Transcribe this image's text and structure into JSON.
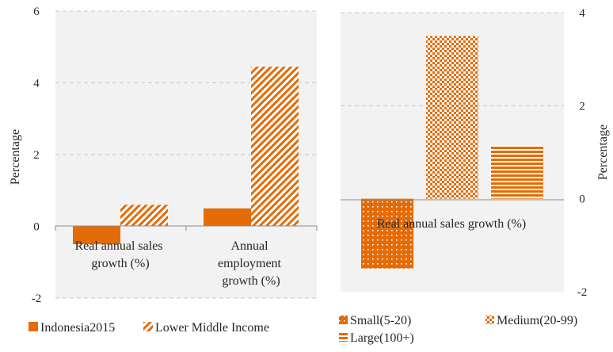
{
  "charts": {
    "left": {
      "ylabel": "Percentage",
      "ticks": [
        "6",
        "4",
        "2",
        "0",
        "-2"
      ],
      "categories": [
        "Real annual sales growth (%)",
        "Annual employment growth (%)"
      ],
      "cat_lines": [
        [
          "Real annual sales",
          "growth (%)"
        ],
        [
          "Annual",
          "employment",
          "growth (%)"
        ]
      ],
      "legend": [
        "Indonesia2015",
        "Lower Middle Income"
      ]
    },
    "right": {
      "ylabel": "Percentage",
      "ticks": [
        "4",
        "2",
        "0",
        "-2"
      ],
      "category": "Real annual sales growth (%)",
      "legend": [
        "Small(5-20)",
        "Medium(20-99)",
        "Large(100+)"
      ]
    }
  },
  "chart_data": [
    {
      "type": "bar",
      "categories": [
        "Real annual sales growth (%)",
        "Annual employment growth (%)"
      ],
      "series": [
        {
          "name": "Indonesia2015",
          "values": [
            -0.5,
            0.5
          ]
        },
        {
          "name": "Lower Middle Income",
          "values": [
            0.6,
            4.45
          ]
        }
      ],
      "ylabel": "Percentage",
      "ylim": [
        -2,
        6
      ],
      "grid": true,
      "legend": "bottom",
      "colors": {
        "Indonesia2015": "#e36c09",
        "Lower Middle Income": "#e36c09"
      }
    },
    {
      "type": "bar",
      "categories": [
        "Real annual sales growth (%)"
      ],
      "series": [
        {
          "name": "Small(5-20)",
          "values": [
            -1.5
          ]
        },
        {
          "name": "Medium(20-99)",
          "values": [
            3.5
          ]
        },
        {
          "name": "Large(100+)",
          "values": [
            1.15
          ]
        }
      ],
      "ylabel": "Percentage",
      "ylim": [
        -2,
        4
      ],
      "grid": true,
      "legend": "bottom",
      "colors": {
        "Small(5-20)": "#e36c09",
        "Medium(20-99)": "#e36c09",
        "Large(100+)": "#e36c09"
      }
    }
  ]
}
